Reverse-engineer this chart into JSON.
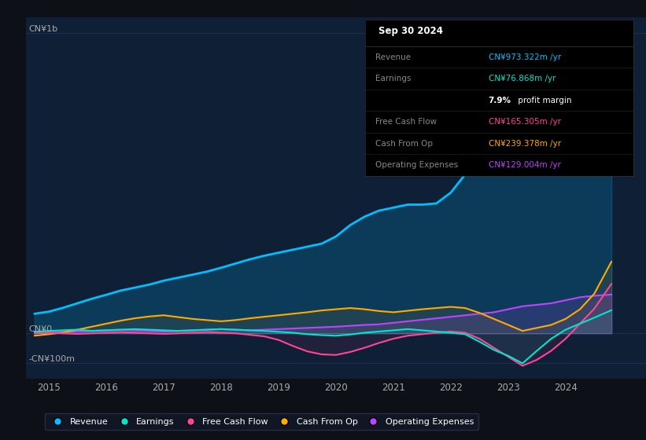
{
  "bg_color": "#0d1117",
  "plot_bg_color": "#0f1f35",
  "grid_color": "#1e3050",
  "ylim": [
    -150,
    1050
  ],
  "xlim": [
    2014.6,
    2025.4
  ],
  "xticks": [
    2015,
    2016,
    2017,
    2018,
    2019,
    2020,
    2021,
    2022,
    2023,
    2024
  ],
  "legend_items": [
    {
      "label": "Revenue",
      "color": "#00bfff"
    },
    {
      "label": "Earnings",
      "color": "#00e5cc"
    },
    {
      "label": "Free Cash Flow",
      "color": "#ff4499"
    },
    {
      "label": "Cash From Op",
      "color": "#ffaa00"
    },
    {
      "label": "Operating Expenses",
      "color": "#bb44ff"
    }
  ],
  "info_box": {
    "title": "Sep 30 2024",
    "rows": [
      {
        "label": "Revenue",
        "value": "CN¥973.322m /yr",
        "value_color": "#00bfff"
      },
      {
        "label": "Earnings",
        "value": "CN¥76.868m /yr",
        "value_color": "#00e5cc"
      },
      {
        "label": "",
        "value": "7.9% profit margin",
        "value_color": "#ffffff",
        "bold_prefix": "7.9%"
      },
      {
        "label": "Free Cash Flow",
        "value": "CN¥165.305m /yr",
        "value_color": "#ff4499"
      },
      {
        "label": "Cash From Op",
        "value": "CN¥239.378m /yr",
        "value_color": "#ffaa00"
      },
      {
        "label": "Operating Expenses",
        "value": "CN¥129.004m /yr",
        "value_color": "#bb44ff"
      }
    ]
  },
  "revenue": {
    "color": "#00bfff",
    "fill_alpha": 0.18,
    "lw": 2.0,
    "x": [
      2014.75,
      2015.0,
      2015.25,
      2015.5,
      2015.75,
      2016.0,
      2016.25,
      2016.5,
      2016.75,
      2017.0,
      2017.25,
      2017.5,
      2017.75,
      2018.0,
      2018.25,
      2018.5,
      2018.75,
      2019.0,
      2019.25,
      2019.5,
      2019.75,
      2020.0,
      2020.25,
      2020.5,
      2020.75,
      2021.0,
      2021.25,
      2021.5,
      2021.75,
      2022.0,
      2022.25,
      2022.5,
      2022.75,
      2023.0,
      2023.25,
      2023.5,
      2023.75,
      2024.0,
      2024.25,
      2024.5,
      2024.8
    ],
    "y": [
      65,
      72,
      85,
      100,
      115,
      128,
      142,
      152,
      162,
      175,
      185,
      195,
      205,
      218,
      232,
      246,
      258,
      268,
      278,
      288,
      298,
      322,
      360,
      388,
      408,
      418,
      428,
      428,
      432,
      468,
      528,
      568,
      598,
      618,
      588,
      558,
      578,
      648,
      748,
      848,
      973
    ]
  },
  "earnings": {
    "color": "#00e5cc",
    "fill_alpha": 0.08,
    "lw": 1.5,
    "x": [
      2014.75,
      2015.0,
      2015.25,
      2015.5,
      2015.75,
      2016.0,
      2016.25,
      2016.5,
      2016.75,
      2017.0,
      2017.25,
      2017.5,
      2017.75,
      2018.0,
      2018.25,
      2018.5,
      2018.75,
      2019.0,
      2019.25,
      2019.5,
      2019.75,
      2020.0,
      2020.25,
      2020.5,
      2020.75,
      2021.0,
      2021.25,
      2021.5,
      2021.75,
      2022.0,
      2022.25,
      2022.5,
      2022.75,
      2023.0,
      2023.25,
      2023.5,
      2023.75,
      2024.0,
      2024.25,
      2024.5,
      2024.8
    ],
    "y": [
      5,
      8,
      10,
      12,
      8,
      10,
      12,
      14,
      12,
      10,
      8,
      10,
      12,
      14,
      12,
      10,
      8,
      5,
      2,
      -3,
      -6,
      -8,
      -4,
      2,
      6,
      10,
      14,
      10,
      6,
      2,
      -3,
      -28,
      -55,
      -75,
      -100,
      -58,
      -18,
      12,
      32,
      52,
      77
    ]
  },
  "free_cash_flow": {
    "color": "#ff4499",
    "fill_alpha": 0.08,
    "lw": 1.5,
    "x": [
      2014.75,
      2015.0,
      2015.25,
      2015.5,
      2015.75,
      2016.0,
      2016.25,
      2016.5,
      2016.75,
      2017.0,
      2017.25,
      2017.5,
      2017.75,
      2018.0,
      2018.25,
      2018.5,
      2018.75,
      2019.0,
      2019.25,
      2019.5,
      2019.75,
      2020.0,
      2020.25,
      2020.5,
      2020.75,
      2021.0,
      2021.25,
      2021.5,
      2021.75,
      2022.0,
      2022.25,
      2022.5,
      2022.75,
      2023.0,
      2023.25,
      2023.5,
      2023.75,
      2024.0,
      2024.25,
      2024.5,
      2024.8
    ],
    "y": [
      0,
      2,
      0,
      -2,
      0,
      2,
      4,
      2,
      0,
      -2,
      0,
      2,
      4,
      2,
      0,
      -5,
      -10,
      -22,
      -42,
      -60,
      -70,
      -72,
      -62,
      -48,
      -32,
      -18,
      -8,
      -3,
      2,
      6,
      2,
      -18,
      -48,
      -78,
      -108,
      -88,
      -58,
      -18,
      32,
      82,
      165
    ]
  },
  "cash_from_op": {
    "color": "#ffaa00",
    "fill_alpha": 0.08,
    "lw": 1.5,
    "x": [
      2014.75,
      2015.0,
      2015.25,
      2015.5,
      2015.75,
      2016.0,
      2016.25,
      2016.5,
      2016.75,
      2017.0,
      2017.25,
      2017.5,
      2017.75,
      2018.0,
      2018.25,
      2018.5,
      2018.75,
      2019.0,
      2019.25,
      2019.5,
      2019.75,
      2020.0,
      2020.25,
      2020.5,
      2020.75,
      2021.0,
      2021.25,
      2021.5,
      2021.75,
      2022.0,
      2022.25,
      2022.5,
      2022.75,
      2023.0,
      2023.25,
      2023.5,
      2023.75,
      2024.0,
      2024.25,
      2024.5,
      2024.8
    ],
    "y": [
      -8,
      -3,
      3,
      12,
      22,
      32,
      42,
      50,
      56,
      60,
      54,
      48,
      44,
      40,
      44,
      50,
      55,
      60,
      65,
      70,
      76,
      80,
      84,
      80,
      74,
      70,
      75,
      80,
      84,
      88,
      84,
      68,
      48,
      28,
      8,
      18,
      28,
      48,
      80,
      132,
      239
    ]
  },
  "operating_expenses": {
    "color": "#bb44ff",
    "fill_alpha": 0.15,
    "lw": 1.5,
    "x": [
      2014.75,
      2015.0,
      2015.25,
      2015.5,
      2015.75,
      2016.0,
      2016.25,
      2016.5,
      2016.75,
      2017.0,
      2017.25,
      2017.5,
      2017.75,
      2018.0,
      2018.25,
      2018.5,
      2018.75,
      2019.0,
      2019.25,
      2019.5,
      2019.75,
      2020.0,
      2020.25,
      2020.5,
      2020.75,
      2021.0,
      2021.25,
      2021.5,
      2021.75,
      2022.0,
      2022.25,
      2022.5,
      2022.75,
      2023.0,
      2023.25,
      2023.5,
      2023.75,
      2024.0,
      2024.25,
      2024.5,
      2024.8
    ],
    "y": [
      0,
      2,
      4,
      6,
      8,
      10,
      12,
      10,
      8,
      6,
      8,
      10,
      12,
      14,
      12,
      10,
      12,
      14,
      16,
      18,
      20,
      22,
      25,
      28,
      30,
      35,
      40,
      45,
      50,
      55,
      60,
      65,
      70,
      80,
      90,
      95,
      100,
      110,
      120,
      125,
      129
    ]
  }
}
